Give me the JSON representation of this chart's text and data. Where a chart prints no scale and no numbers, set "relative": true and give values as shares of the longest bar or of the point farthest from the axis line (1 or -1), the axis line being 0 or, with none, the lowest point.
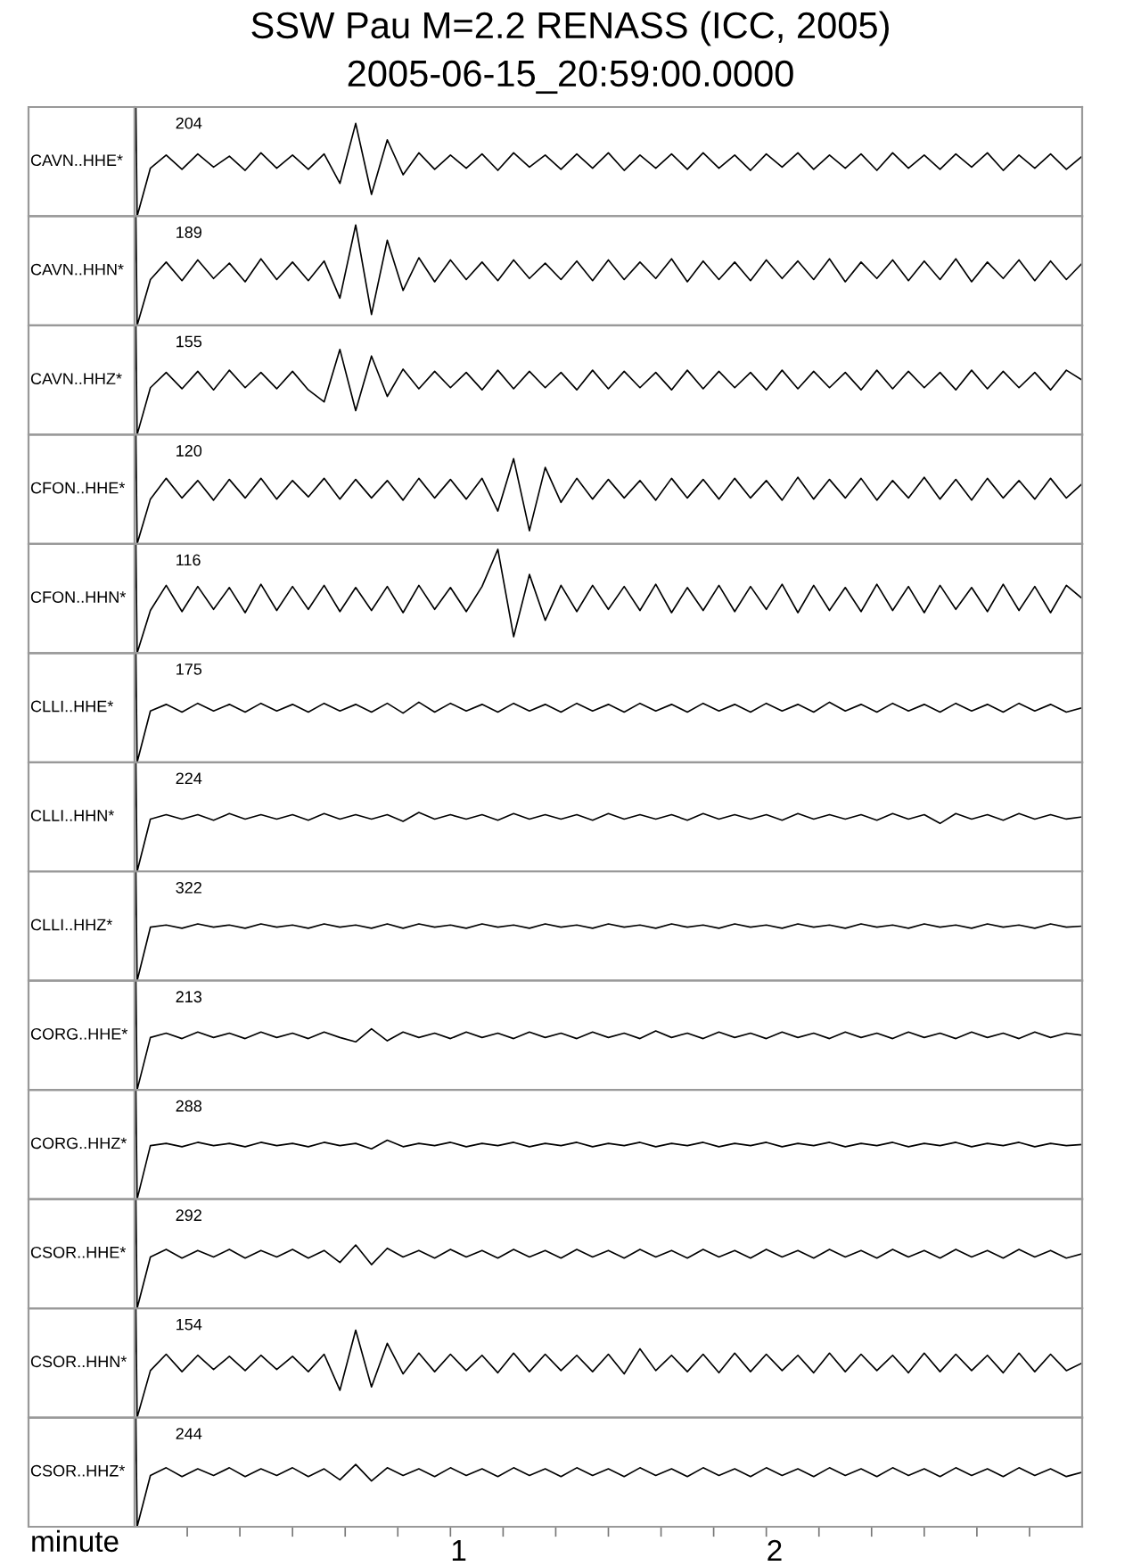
{
  "chart_data": [
    {
      "type": "line",
      "title": "SSW Pau M=2.2 RENASS (ICC, 2005)",
      "subtitle": "2005-06-15_20:59:00.0000",
      "ylabel": "CAVN..HHE*",
      "annotations": [
        "204"
      ],
      "relative": true,
      "tick_labels": false,
      "xlim": [
        0,
        3
      ],
      "x": [
        0,
        0.004,
        0.008,
        0.05,
        0.1,
        0.15,
        0.2,
        0.25,
        0.3,
        0.35,
        0.4,
        0.45,
        0.5,
        0.55,
        0.6,
        0.65,
        0.7,
        0.75,
        0.8,
        0.85,
        0.9,
        0.95,
        1,
        1.05,
        1.1,
        1.15,
        1.2,
        1.25,
        1.3,
        1.35,
        1.4,
        1.45,
        1.5,
        1.55,
        1.6,
        1.65,
        1.7,
        1.75,
        1.8,
        1.85,
        1.9,
        1.95,
        2,
        2.05,
        2.1,
        2.15,
        2.2,
        2.25,
        2.3,
        2.35,
        2.4,
        2.45,
        2.5,
        2.55,
        2.6,
        2.65,
        2.7,
        2.75,
        2.8,
        2.85,
        2.9,
        2.95,
        3
      ],
      "series": [
        {
          "color": "#000000",
          "values": [
            0.5,
            1,
            0,
            0.44,
            0.56,
            0.43,
            0.57,
            0.45,
            0.55,
            0.42,
            0.58,
            0.44,
            0.56,
            0.43,
            0.57,
            0.3,
            0.85,
            0.2,
            0.7,
            0.38,
            0.58,
            0.43,
            0.56,
            0.44,
            0.57,
            0.42,
            0.58,
            0.45,
            0.56,
            0.43,
            0.57,
            0.44,
            0.58,
            0.42,
            0.56,
            0.44,
            0.57,
            0.43,
            0.58,
            0.44,
            0.56,
            0.42,
            0.57,
            0.45,
            0.58,
            0.43,
            0.56,
            0.44,
            0.57,
            0.42,
            0.58,
            0.44,
            0.56,
            0.43,
            0.57,
            0.45,
            0.58,
            0.42,
            0.56,
            0.44,
            0.57,
            0.43,
            0.55
          ]
        }
      ]
    },
    {
      "type": "line",
      "ylabel": "CAVN..HHN*",
      "annotations": [
        "189"
      ],
      "relative": true,
      "tick_labels": false,
      "xlim": [
        0,
        3
      ],
      "x": [
        0,
        0.004,
        0.008,
        0.05,
        0.1,
        0.15,
        0.2,
        0.25,
        0.3,
        0.35,
        0.4,
        0.45,
        0.5,
        0.55,
        0.6,
        0.65,
        0.7,
        0.75,
        0.8,
        0.85,
        0.9,
        0.95,
        1,
        1.05,
        1.1,
        1.15,
        1.2,
        1.25,
        1.3,
        1.35,
        1.4,
        1.45,
        1.5,
        1.55,
        1.6,
        1.65,
        1.7,
        1.75,
        1.8,
        1.85,
        1.9,
        1.95,
        2,
        2.05,
        2.1,
        2.15,
        2.2,
        2.25,
        2.3,
        2.35,
        2.4,
        2.45,
        2.5,
        2.55,
        2.6,
        2.65,
        2.7,
        2.75,
        2.8,
        2.85,
        2.9,
        2.95,
        3
      ],
      "series": [
        {
          "color": "#000000",
          "values": [
            0.5,
            1,
            0,
            0.42,
            0.58,
            0.41,
            0.6,
            0.43,
            0.57,
            0.4,
            0.61,
            0.42,
            0.58,
            0.41,
            0.59,
            0.25,
            0.92,
            0.1,
            0.78,
            0.32,
            0.62,
            0.4,
            0.6,
            0.42,
            0.58,
            0.41,
            0.6,
            0.43,
            0.57,
            0.42,
            0.59,
            0.41,
            0.6,
            0.42,
            0.58,
            0.43,
            0.61,
            0.4,
            0.59,
            0.42,
            0.58,
            0.41,
            0.6,
            0.43,
            0.59,
            0.42,
            0.61,
            0.4,
            0.58,
            0.43,
            0.6,
            0.41,
            0.59,
            0.42,
            0.61,
            0.4,
            0.58,
            0.43,
            0.6,
            0.41,
            0.59,
            0.42,
            0.57
          ]
        }
      ]
    },
    {
      "type": "line",
      "ylabel": "CAVN..HHZ*",
      "annotations": [
        "155"
      ],
      "relative": true,
      "tick_labels": false,
      "xlim": [
        0,
        3
      ],
      "x": [
        0,
        0.004,
        0.008,
        0.05,
        0.1,
        0.15,
        0.2,
        0.25,
        0.3,
        0.35,
        0.4,
        0.45,
        0.5,
        0.55,
        0.6,
        0.65,
        0.7,
        0.75,
        0.8,
        0.85,
        0.9,
        0.95,
        1,
        1.05,
        1.1,
        1.15,
        1.2,
        1.25,
        1.3,
        1.35,
        1.4,
        1.45,
        1.5,
        1.55,
        1.6,
        1.65,
        1.7,
        1.75,
        1.8,
        1.85,
        1.9,
        1.95,
        2,
        2.05,
        2.1,
        2.15,
        2.2,
        2.25,
        2.3,
        2.35,
        2.4,
        2.45,
        2.5,
        2.55,
        2.6,
        2.65,
        2.7,
        2.75,
        2.8,
        2.85,
        2.9,
        2.95,
        3
      ],
      "series": [
        {
          "color": "#000000",
          "values": [
            0.5,
            1,
            0,
            0.43,
            0.57,
            0.42,
            0.58,
            0.41,
            0.59,
            0.43,
            0.57,
            0.42,
            0.58,
            0.41,
            0.3,
            0.78,
            0.22,
            0.72,
            0.35,
            0.6,
            0.42,
            0.58,
            0.43,
            0.57,
            0.41,
            0.59,
            0.42,
            0.58,
            0.43,
            0.57,
            0.41,
            0.59,
            0.42,
            0.58,
            0.43,
            0.57,
            0.41,
            0.59,
            0.42,
            0.58,
            0.43,
            0.57,
            0.41,
            0.59,
            0.42,
            0.58,
            0.43,
            0.57,
            0.41,
            0.59,
            0.42,
            0.58,
            0.43,
            0.57,
            0.41,
            0.59,
            0.42,
            0.58,
            0.43,
            0.57,
            0.41,
            0.59,
            0.5
          ]
        }
      ]
    },
    {
      "type": "line",
      "ylabel": "CFON..HHE*",
      "annotations": [
        "120"
      ],
      "relative": true,
      "tick_labels": false,
      "xlim": [
        0,
        3
      ],
      "x": [
        0,
        0.004,
        0.008,
        0.05,
        0.1,
        0.15,
        0.2,
        0.25,
        0.3,
        0.35,
        0.4,
        0.45,
        0.5,
        0.55,
        0.6,
        0.65,
        0.7,
        0.75,
        0.8,
        0.85,
        0.9,
        0.95,
        1,
        1.05,
        1.1,
        1.15,
        1.2,
        1.25,
        1.3,
        1.35,
        1.4,
        1.45,
        1.5,
        1.55,
        1.6,
        1.65,
        1.7,
        1.75,
        1.8,
        1.85,
        1.9,
        1.95,
        2,
        2.05,
        2.1,
        2.15,
        2.2,
        2.25,
        2.3,
        2.35,
        2.4,
        2.45,
        2.5,
        2.55,
        2.6,
        2.65,
        2.7,
        2.75,
        2.8,
        2.85,
        2.9,
        2.95,
        3
      ],
      "series": [
        {
          "color": "#000000",
          "values": [
            0.5,
            1,
            0,
            0.41,
            0.6,
            0.42,
            0.58,
            0.4,
            0.59,
            0.42,
            0.6,
            0.41,
            0.58,
            0.43,
            0.6,
            0.41,
            0.59,
            0.42,
            0.58,
            0.4,
            0.6,
            0.42,
            0.59,
            0.41,
            0.6,
            0.3,
            0.78,
            0.12,
            0.7,
            0.38,
            0.6,
            0.41,
            0.59,
            0.42,
            0.58,
            0.4,
            0.6,
            0.42,
            0.59,
            0.41,
            0.6,
            0.42,
            0.58,
            0.4,
            0.61,
            0.41,
            0.59,
            0.42,
            0.6,
            0.4,
            0.58,
            0.42,
            0.61,
            0.41,
            0.59,
            0.4,
            0.6,
            0.42,
            0.58,
            0.41,
            0.6,
            0.42,
            0.55
          ]
        }
      ]
    },
    {
      "type": "line",
      "ylabel": "CFON..HHN*",
      "annotations": [
        "116"
      ],
      "relative": true,
      "tick_labels": false,
      "xlim": [
        0,
        3
      ],
      "x": [
        0,
        0.004,
        0.008,
        0.05,
        0.1,
        0.15,
        0.2,
        0.25,
        0.3,
        0.35,
        0.4,
        0.45,
        0.5,
        0.55,
        0.6,
        0.65,
        0.7,
        0.75,
        0.8,
        0.85,
        0.9,
        0.95,
        1,
        1.05,
        1.1,
        1.15,
        1.2,
        1.25,
        1.3,
        1.35,
        1.4,
        1.45,
        1.5,
        1.55,
        1.6,
        1.65,
        1.7,
        1.75,
        1.8,
        1.85,
        1.9,
        1.95,
        2,
        2.05,
        2.1,
        2.15,
        2.2,
        2.25,
        2.3,
        2.35,
        2.4,
        2.45,
        2.5,
        2.55,
        2.6,
        2.65,
        2.7,
        2.75,
        2.8,
        2.85,
        2.9,
        2.95,
        3
      ],
      "series": [
        {
          "color": "#000000",
          "values": [
            0.5,
            1,
            0,
            0.39,
            0.62,
            0.38,
            0.61,
            0.4,
            0.6,
            0.37,
            0.63,
            0.39,
            0.61,
            0.4,
            0.62,
            0.38,
            0.6,
            0.39,
            0.61,
            0.37,
            0.62,
            0.4,
            0.6,
            0.38,
            0.61,
            0.95,
            0.15,
            0.72,
            0.3,
            0.62,
            0.38,
            0.62,
            0.4,
            0.61,
            0.39,
            0.63,
            0.37,
            0.6,
            0.39,
            0.62,
            0.38,
            0.61,
            0.4,
            0.63,
            0.37,
            0.62,
            0.39,
            0.6,
            0.38,
            0.63,
            0.39,
            0.61,
            0.37,
            0.62,
            0.4,
            0.6,
            0.38,
            0.63,
            0.39,
            0.61,
            0.37,
            0.62,
            0.5
          ]
        }
      ]
    },
    {
      "type": "line",
      "ylabel": "CLLI..HHE*",
      "annotations": [
        "175"
      ],
      "relative": true,
      "tick_labels": false,
      "xlim": [
        0,
        3
      ],
      "x": [
        0,
        0.004,
        0.008,
        0.05,
        0.1,
        0.15,
        0.2,
        0.25,
        0.3,
        0.35,
        0.4,
        0.45,
        0.5,
        0.55,
        0.6,
        0.65,
        0.7,
        0.75,
        0.8,
        0.85,
        0.9,
        0.95,
        1,
        1.05,
        1.1,
        1.15,
        1.2,
        1.25,
        1.3,
        1.35,
        1.4,
        1.45,
        1.5,
        1.55,
        1.6,
        1.65,
        1.7,
        1.75,
        1.8,
        1.85,
        1.9,
        1.95,
        2,
        2.05,
        2.1,
        2.15,
        2.2,
        2.25,
        2.3,
        2.35,
        2.4,
        2.45,
        2.5,
        2.55,
        2.6,
        2.65,
        2.7,
        2.75,
        2.8,
        2.85,
        2.9,
        2.95,
        3
      ],
      "series": [
        {
          "color": "#000000",
          "values": [
            0.5,
            1,
            0,
            0.47,
            0.53,
            0.46,
            0.54,
            0.47,
            0.53,
            0.46,
            0.54,
            0.47,
            0.53,
            0.46,
            0.54,
            0.47,
            0.53,
            0.46,
            0.54,
            0.45,
            0.55,
            0.46,
            0.54,
            0.47,
            0.53,
            0.46,
            0.54,
            0.47,
            0.53,
            0.46,
            0.54,
            0.47,
            0.53,
            0.46,
            0.54,
            0.47,
            0.53,
            0.46,
            0.54,
            0.47,
            0.53,
            0.46,
            0.54,
            0.47,
            0.53,
            0.46,
            0.55,
            0.47,
            0.53,
            0.46,
            0.54,
            0.47,
            0.53,
            0.46,
            0.54,
            0.47,
            0.53,
            0.46,
            0.54,
            0.47,
            0.53,
            0.46,
            0.5
          ]
        }
      ]
    },
    {
      "type": "line",
      "ylabel": "CLLI..HHN*",
      "annotations": [
        "224"
      ],
      "relative": true,
      "tick_labels": false,
      "xlim": [
        0,
        3
      ],
      "x": [
        0,
        0.004,
        0.008,
        0.05,
        0.1,
        0.15,
        0.2,
        0.25,
        0.3,
        0.35,
        0.4,
        0.45,
        0.5,
        0.55,
        0.6,
        0.65,
        0.7,
        0.75,
        0.8,
        0.85,
        0.9,
        0.95,
        1,
        1.05,
        1.1,
        1.15,
        1.2,
        1.25,
        1.3,
        1.35,
        1.4,
        1.45,
        1.5,
        1.55,
        1.6,
        1.65,
        1.7,
        1.75,
        1.8,
        1.85,
        1.9,
        1.95,
        2,
        2.05,
        2.1,
        2.15,
        2.2,
        2.25,
        2.3,
        2.35,
        2.4,
        2.45,
        2.5,
        2.55,
        2.6,
        2.65,
        2.7,
        2.75,
        2.8,
        2.85,
        2.9,
        2.95,
        3
      ],
      "series": [
        {
          "color": "#000000",
          "values": [
            0.5,
            1,
            0,
            0.48,
            0.52,
            0.48,
            0.52,
            0.47,
            0.53,
            0.48,
            0.52,
            0.48,
            0.52,
            0.47,
            0.53,
            0.48,
            0.52,
            0.48,
            0.52,
            0.46,
            0.54,
            0.48,
            0.52,
            0.48,
            0.52,
            0.47,
            0.53,
            0.48,
            0.52,
            0.48,
            0.52,
            0.47,
            0.53,
            0.48,
            0.52,
            0.48,
            0.52,
            0.47,
            0.53,
            0.48,
            0.52,
            0.48,
            0.52,
            0.47,
            0.53,
            0.48,
            0.52,
            0.48,
            0.52,
            0.47,
            0.53,
            0.48,
            0.52,
            0.44,
            0.53,
            0.48,
            0.52,
            0.47,
            0.53,
            0.48,
            0.52,
            0.48,
            0.5
          ]
        }
      ]
    },
    {
      "type": "line",
      "ylabel": "CLLI..HHZ*",
      "annotations": [
        "322"
      ],
      "relative": true,
      "tick_labels": false,
      "xlim": [
        0,
        3
      ],
      "x": [
        0,
        0.004,
        0.008,
        0.05,
        0.1,
        0.15,
        0.2,
        0.25,
        0.3,
        0.35,
        0.4,
        0.45,
        0.5,
        0.55,
        0.6,
        0.65,
        0.7,
        0.75,
        0.8,
        0.85,
        0.9,
        0.95,
        1,
        1.05,
        1.1,
        1.15,
        1.2,
        1.25,
        1.3,
        1.35,
        1.4,
        1.45,
        1.5,
        1.55,
        1.6,
        1.65,
        1.7,
        1.75,
        1.8,
        1.85,
        1.9,
        1.95,
        2,
        2.05,
        2.1,
        2.15,
        2.2,
        2.25,
        2.3,
        2.35,
        2.4,
        2.45,
        2.5,
        2.55,
        2.6,
        2.65,
        2.7,
        2.75,
        2.8,
        2.85,
        2.9,
        2.95,
        3
      ],
      "series": [
        {
          "color": "#000000",
          "values": [
            0.5,
            1,
            0,
            0.49,
            0.51,
            0.48,
            0.52,
            0.49,
            0.51,
            0.48,
            0.52,
            0.49,
            0.51,
            0.48,
            0.52,
            0.49,
            0.51,
            0.48,
            0.52,
            0.48,
            0.52,
            0.49,
            0.51,
            0.48,
            0.52,
            0.49,
            0.51,
            0.48,
            0.52,
            0.49,
            0.51,
            0.48,
            0.52,
            0.49,
            0.51,
            0.48,
            0.52,
            0.49,
            0.51,
            0.48,
            0.52,
            0.49,
            0.51,
            0.48,
            0.52,
            0.49,
            0.51,
            0.48,
            0.52,
            0.49,
            0.51,
            0.48,
            0.52,
            0.49,
            0.51,
            0.48,
            0.52,
            0.49,
            0.51,
            0.48,
            0.52,
            0.49,
            0.5
          ]
        }
      ]
    },
    {
      "type": "line",
      "ylabel": "CORG..HHE*",
      "annotations": [
        "213"
      ],
      "relative": true,
      "tick_labels": false,
      "xlim": [
        0,
        3
      ],
      "x": [
        0,
        0.004,
        0.008,
        0.05,
        0.1,
        0.15,
        0.2,
        0.25,
        0.3,
        0.35,
        0.4,
        0.45,
        0.5,
        0.55,
        0.6,
        0.65,
        0.7,
        0.75,
        0.8,
        0.85,
        0.9,
        0.95,
        1,
        1.05,
        1.1,
        1.15,
        1.2,
        1.25,
        1.3,
        1.35,
        1.4,
        1.45,
        1.5,
        1.55,
        1.6,
        1.65,
        1.7,
        1.75,
        1.8,
        1.85,
        1.9,
        1.95,
        2,
        2.05,
        2.1,
        2.15,
        2.2,
        2.25,
        2.3,
        2.35,
        2.4,
        2.45,
        2.5,
        2.55,
        2.6,
        2.65,
        2.7,
        2.75,
        2.8,
        2.85,
        2.9,
        2.95,
        3
      ],
      "series": [
        {
          "color": "#000000",
          "values": [
            0.5,
            1,
            0,
            0.48,
            0.52,
            0.47,
            0.53,
            0.48,
            0.52,
            0.47,
            0.53,
            0.48,
            0.52,
            0.47,
            0.53,
            0.48,
            0.44,
            0.56,
            0.45,
            0.53,
            0.48,
            0.52,
            0.47,
            0.53,
            0.48,
            0.52,
            0.47,
            0.53,
            0.48,
            0.52,
            0.47,
            0.53,
            0.48,
            0.52,
            0.47,
            0.54,
            0.48,
            0.52,
            0.47,
            0.53,
            0.48,
            0.52,
            0.47,
            0.53,
            0.48,
            0.52,
            0.47,
            0.53,
            0.48,
            0.52,
            0.47,
            0.53,
            0.48,
            0.52,
            0.47,
            0.53,
            0.48,
            0.52,
            0.47,
            0.53,
            0.48,
            0.52,
            0.5
          ]
        }
      ]
    },
    {
      "type": "line",
      "ylabel": "CORG..HHZ*",
      "annotations": [
        "288"
      ],
      "relative": true,
      "tick_labels": false,
      "xlim": [
        0,
        3
      ],
      "x": [
        0,
        0.004,
        0.008,
        0.05,
        0.1,
        0.15,
        0.2,
        0.25,
        0.3,
        0.35,
        0.4,
        0.45,
        0.5,
        0.55,
        0.6,
        0.65,
        0.7,
        0.75,
        0.8,
        0.85,
        0.9,
        0.95,
        1,
        1.05,
        1.1,
        1.15,
        1.2,
        1.25,
        1.3,
        1.35,
        1.4,
        1.45,
        1.5,
        1.55,
        1.6,
        1.65,
        1.7,
        1.75,
        1.8,
        1.85,
        1.9,
        1.95,
        2,
        2.05,
        2.1,
        2.15,
        2.2,
        2.25,
        2.3,
        2.35,
        2.4,
        2.45,
        2.5,
        2.55,
        2.6,
        2.65,
        2.7,
        2.75,
        2.8,
        2.85,
        2.9,
        2.95,
        3
      ],
      "series": [
        {
          "color": "#000000",
          "values": [
            0.5,
            1,
            0,
            0.49,
            0.51,
            0.48,
            0.52,
            0.49,
            0.51,
            0.48,
            0.52,
            0.49,
            0.51,
            0.48,
            0.52,
            0.49,
            0.51,
            0.46,
            0.54,
            0.48,
            0.51,
            0.49,
            0.52,
            0.48,
            0.51,
            0.49,
            0.52,
            0.48,
            0.51,
            0.49,
            0.52,
            0.48,
            0.51,
            0.49,
            0.52,
            0.48,
            0.51,
            0.49,
            0.52,
            0.48,
            0.51,
            0.49,
            0.52,
            0.48,
            0.51,
            0.49,
            0.52,
            0.48,
            0.51,
            0.49,
            0.52,
            0.48,
            0.51,
            0.49,
            0.52,
            0.48,
            0.51,
            0.49,
            0.52,
            0.48,
            0.51,
            0.49,
            0.5
          ]
        }
      ]
    },
    {
      "type": "line",
      "ylabel": "CSOR..HHE*",
      "annotations": [
        "292"
      ],
      "relative": true,
      "tick_labels": false,
      "xlim": [
        0,
        3
      ],
      "x": [
        0,
        0.004,
        0.008,
        0.05,
        0.1,
        0.15,
        0.2,
        0.25,
        0.3,
        0.35,
        0.4,
        0.45,
        0.5,
        0.55,
        0.6,
        0.65,
        0.7,
        0.75,
        0.8,
        0.85,
        0.9,
        0.95,
        1,
        1.05,
        1.1,
        1.15,
        1.2,
        1.25,
        1.3,
        1.35,
        1.4,
        1.45,
        1.5,
        1.55,
        1.6,
        1.65,
        1.7,
        1.75,
        1.8,
        1.85,
        1.9,
        1.95,
        2,
        2.05,
        2.1,
        2.15,
        2.2,
        2.25,
        2.3,
        2.35,
        2.4,
        2.45,
        2.5,
        2.55,
        2.6,
        2.65,
        2.7,
        2.75,
        2.8,
        2.85,
        2.9,
        2.95,
        3
      ],
      "series": [
        {
          "color": "#000000",
          "values": [
            0.5,
            1,
            0,
            0.47,
            0.54,
            0.46,
            0.53,
            0.47,
            0.54,
            0.46,
            0.53,
            0.47,
            0.54,
            0.46,
            0.53,
            0.42,
            0.58,
            0.4,
            0.55,
            0.47,
            0.53,
            0.46,
            0.54,
            0.47,
            0.53,
            0.46,
            0.54,
            0.47,
            0.53,
            0.46,
            0.54,
            0.47,
            0.53,
            0.46,
            0.54,
            0.47,
            0.53,
            0.46,
            0.54,
            0.47,
            0.53,
            0.46,
            0.54,
            0.47,
            0.53,
            0.46,
            0.54,
            0.47,
            0.53,
            0.46,
            0.54,
            0.47,
            0.53,
            0.46,
            0.54,
            0.47,
            0.53,
            0.46,
            0.54,
            0.47,
            0.53,
            0.46,
            0.5
          ]
        }
      ]
    },
    {
      "type": "line",
      "ylabel": "CSOR..HHN*",
      "annotations": [
        "154"
      ],
      "relative": true,
      "tick_labels": false,
      "xlim": [
        0,
        3
      ],
      "x": [
        0,
        0.004,
        0.008,
        0.05,
        0.1,
        0.15,
        0.2,
        0.25,
        0.3,
        0.35,
        0.4,
        0.45,
        0.5,
        0.55,
        0.6,
        0.65,
        0.7,
        0.75,
        0.8,
        0.85,
        0.9,
        0.95,
        1,
        1.05,
        1.1,
        1.15,
        1.2,
        1.25,
        1.3,
        1.35,
        1.4,
        1.45,
        1.5,
        1.55,
        1.6,
        1.65,
        1.7,
        1.75,
        1.8,
        1.85,
        1.9,
        1.95,
        2,
        2.05,
        2.1,
        2.15,
        2.2,
        2.25,
        2.3,
        2.35,
        2.4,
        2.45,
        2.5,
        2.55,
        2.6,
        2.65,
        2.7,
        2.75,
        2.8,
        2.85,
        2.9,
        2.95,
        3
      ],
      "series": [
        {
          "color": "#000000",
          "values": [
            0.5,
            1,
            0,
            0.43,
            0.58,
            0.42,
            0.57,
            0.44,
            0.56,
            0.43,
            0.57,
            0.44,
            0.56,
            0.42,
            0.58,
            0.25,
            0.8,
            0.28,
            0.68,
            0.4,
            0.59,
            0.42,
            0.58,
            0.43,
            0.57,
            0.41,
            0.59,
            0.42,
            0.58,
            0.43,
            0.57,
            0.42,
            0.58,
            0.4,
            0.63,
            0.43,
            0.57,
            0.42,
            0.58,
            0.41,
            0.59,
            0.42,
            0.58,
            0.43,
            0.57,
            0.41,
            0.59,
            0.42,
            0.58,
            0.43,
            0.57,
            0.41,
            0.59,
            0.42,
            0.58,
            0.43,
            0.57,
            0.41,
            0.59,
            0.42,
            0.58,
            0.43,
            0.5
          ]
        }
      ]
    },
    {
      "type": "line",
      "ylabel": "CSOR..HHZ*",
      "annotations": [
        "244"
      ],
      "relative": true,
      "tick_labels": "x",
      "xlabel": "minute",
      "xlim": [
        0,
        3
      ],
      "xticks": [
        {
          "value": 0.1667,
          "label": null
        },
        {
          "value": 0.3333,
          "label": null
        },
        {
          "value": 0.5,
          "label": null
        },
        {
          "value": 0.6667,
          "label": null
        },
        {
          "value": 0.8333,
          "label": null
        },
        1,
        {
          "value": 1.1667,
          "label": null
        },
        {
          "value": 1.3333,
          "label": null
        },
        {
          "value": 1.5,
          "label": null
        },
        {
          "value": 1.6667,
          "label": null
        },
        {
          "value": 1.8333,
          "label": null
        },
        2,
        {
          "value": 2.1667,
          "label": null
        },
        {
          "value": 2.3333,
          "label": null
        },
        {
          "value": 2.5,
          "label": null
        },
        {
          "value": 2.6667,
          "label": null
        },
        {
          "value": 2.8333,
          "label": null
        }
      ],
      "x": [
        0,
        0.004,
        0.008,
        0.05,
        0.1,
        0.15,
        0.2,
        0.25,
        0.3,
        0.35,
        0.4,
        0.45,
        0.5,
        0.55,
        0.6,
        0.65,
        0.7,
        0.75,
        0.8,
        0.85,
        0.9,
        0.95,
        1,
        1.05,
        1.1,
        1.15,
        1.2,
        1.25,
        1.3,
        1.35,
        1.4,
        1.45,
        1.5,
        1.55,
        1.6,
        1.65,
        1.7,
        1.75,
        1.8,
        1.85,
        1.9,
        1.95,
        2,
        2.05,
        2.1,
        2.15,
        2.2,
        2.25,
        2.3,
        2.35,
        2.4,
        2.45,
        2.5,
        2.55,
        2.6,
        2.65,
        2.7,
        2.75,
        2.8,
        2.85,
        2.9,
        2.95,
        3
      ],
      "series": [
        {
          "color": "#000000",
          "values": [
            0.5,
            1,
            0,
            0.47,
            0.54,
            0.46,
            0.53,
            0.47,
            0.54,
            0.46,
            0.53,
            0.47,
            0.54,
            0.46,
            0.53,
            0.43,
            0.57,
            0.42,
            0.54,
            0.47,
            0.53,
            0.46,
            0.54,
            0.47,
            0.53,
            0.46,
            0.54,
            0.47,
            0.53,
            0.46,
            0.54,
            0.47,
            0.53,
            0.46,
            0.54,
            0.47,
            0.53,
            0.46,
            0.54,
            0.47,
            0.53,
            0.46,
            0.54,
            0.47,
            0.53,
            0.46,
            0.54,
            0.47,
            0.53,
            0.46,
            0.54,
            0.47,
            0.53,
            0.46,
            0.54,
            0.47,
            0.53,
            0.46,
            0.54,
            0.47,
            0.53,
            0.46,
            0.5
          ]
        }
      ]
    }
  ]
}
